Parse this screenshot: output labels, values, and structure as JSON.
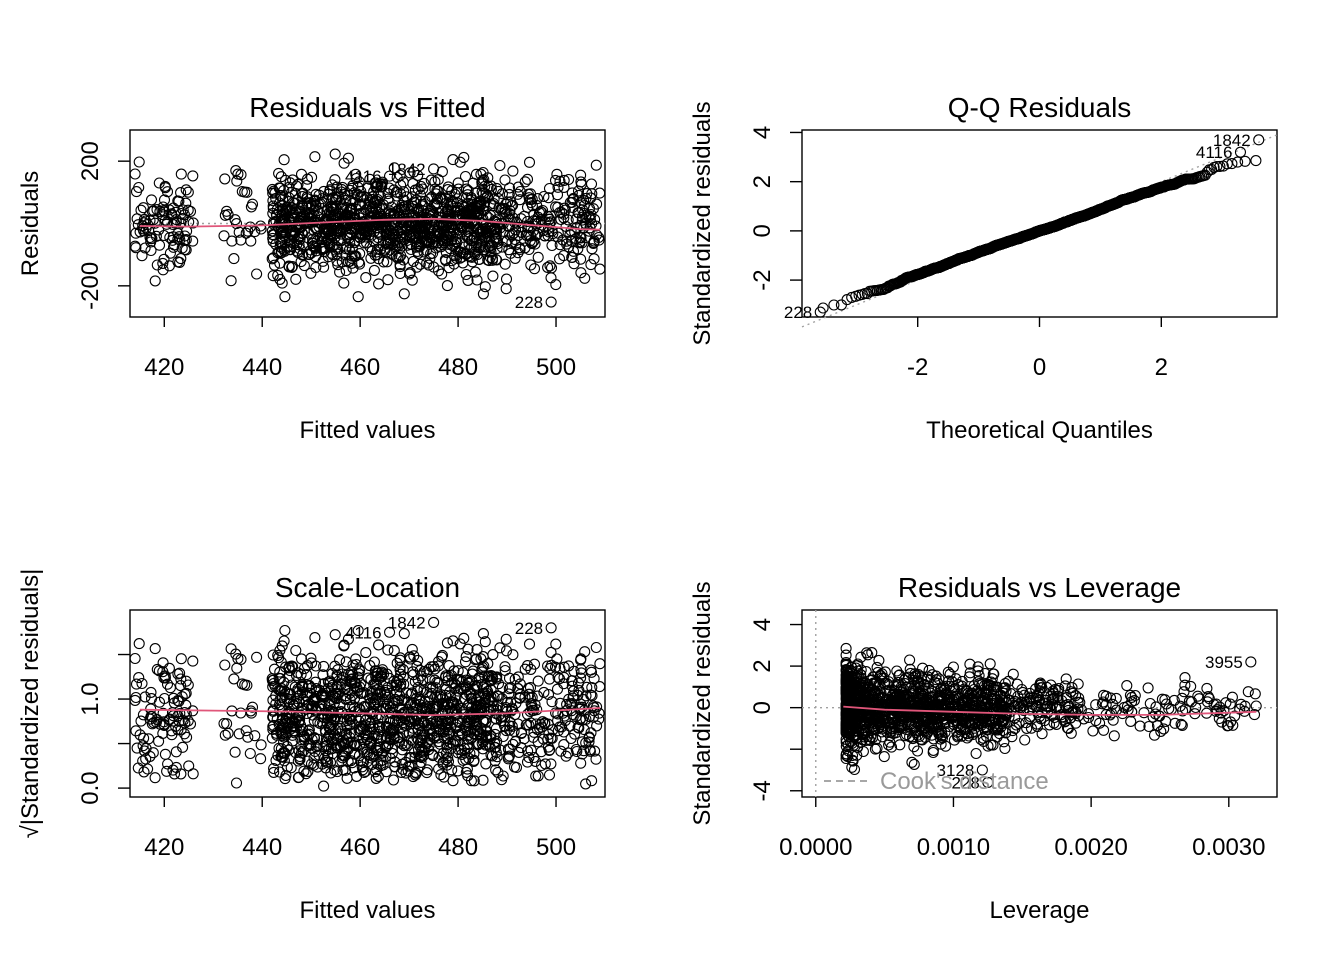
{
  "chart_data": [
    {
      "type": "scatter",
      "title": "Residuals vs Fitted",
      "xlabel": "Fitted values",
      "ylabel": "Residuals",
      "xlim": [
        413,
        510
      ],
      "ylim": [
        -300,
        300
      ],
      "x_ticks": [
        420,
        440,
        460,
        480,
        500
      ],
      "y_ticks": [
        -200,
        200
      ],
      "y_tick_labels": [
        "-200",
        "200"
      ],
      "reference_line": 0,
      "smooth": {
        "x": [
          415,
          425,
          440,
          455,
          465,
          475,
          485,
          495,
          505,
          509
        ],
        "y": [
          -8,
          -10,
          -6,
          5,
          12,
          15,
          8,
          -5,
          -18,
          -20
        ]
      },
      "labeled_points": [
        {
          "label": "4116",
          "x": 466,
          "y": 152
        },
        {
          "label": "1842",
          "x": 475,
          "y": 175
        },
        {
          "label": "228",
          "x": 499,
          "y": -252
        }
      ]
    },
    {
      "type": "scatter",
      "title": "Q-Q Residuals",
      "xlabel": "Theoretical Quantiles",
      "ylabel": "Standardized residuals",
      "xlim": [
        -3.9,
        3.9
      ],
      "ylim": [
        -3.5,
        4.1
      ],
      "x_ticks": [
        -2,
        0,
        2
      ],
      "y_ticks": [
        -2,
        0,
        2,
        4
      ],
      "reference_line": {
        "slope": 1,
        "intercept": 0
      },
      "labeled_points": [
        {
          "label": "1842",
          "x": 3.6,
          "y": 3.7
        },
        {
          "label": "4116",
          "x": 3.3,
          "y": 3.2
        },
        {
          "label": "228",
          "x": -3.6,
          "y": -3.3
        }
      ]
    },
    {
      "type": "scatter",
      "title": "Scale-Location",
      "xlabel": "Fitted values",
      "ylabel": "√|Standardized residuals|",
      "xlim": [
        413,
        510
      ],
      "ylim": [
        -0.1,
        2.0
      ],
      "x_ticks": [
        420,
        440,
        460,
        480,
        500
      ],
      "y_ticks": [
        0.0,
        0.5,
        1.0,
        1.5
      ],
      "y_tick_labels": [
        "0.0",
        "",
        "1.0",
        ""
      ],
      "smooth": {
        "x": [
          415,
          430,
          445,
          460,
          475,
          490,
          509
        ],
        "y": [
          0.88,
          0.87,
          0.86,
          0.84,
          0.82,
          0.84,
          0.9
        ]
      },
      "labeled_points": [
        {
          "label": "4116",
          "x": 466,
          "y": 1.75
        },
        {
          "label": "1842",
          "x": 475,
          "y": 1.86
        },
        {
          "label": "228",
          "x": 499,
          "y": 1.8
        }
      ]
    },
    {
      "type": "scatter",
      "title": "Residuals vs Leverage",
      "xlabel": "Leverage",
      "ylabel": "Standardized residuals",
      "xlim": [
        -0.0001,
        0.00335
      ],
      "ylim": [
        -4.3,
        4.7
      ],
      "x_ticks": [
        0.0,
        0.001,
        0.002,
        0.003
      ],
      "x_tick_labels": [
        "0.0000",
        "0.0010",
        "0.0020",
        "0.0030"
      ],
      "y_ticks": [
        -4,
        -2,
        0,
        2,
        4
      ],
      "y_tick_labels": [
        "-4",
        "",
        "0",
        "2",
        "4"
      ],
      "reference_line": 0,
      "smooth": {
        "x": [
          0.0002,
          0.0005,
          0.001,
          0.0015,
          0.002,
          0.0025,
          0.0032
        ],
        "y": [
          0.05,
          -0.1,
          -0.2,
          -0.3,
          -0.35,
          -0.35,
          -0.2
        ]
      },
      "legend": {
        "label": "Cook's distance",
        "position": "bottom-left"
      },
      "labeled_points": [
        {
          "label": "3955",
          "x": 0.00316,
          "y": 2.2
        },
        {
          "label": "3128",
          "x": 0.00121,
          "y": -3.0
        },
        {
          "label": "228",
          "x": 0.00125,
          "y": -3.6
        }
      ]
    }
  ]
}
